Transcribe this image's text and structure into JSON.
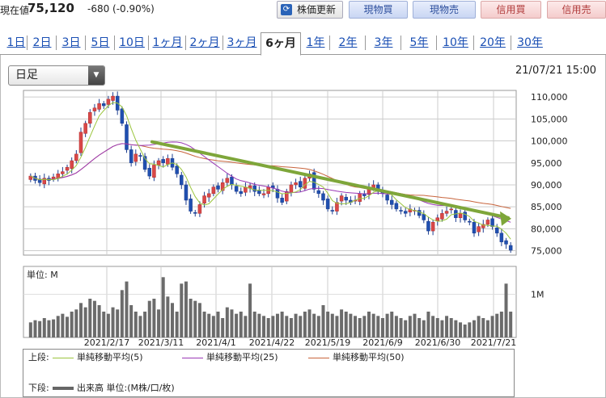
{
  "header": {
    "price_label": "現在値",
    "price": "75,120",
    "change": "-680 (-0.90%)",
    "refresh_label": "株価更新",
    "refresh_icon": "refresh-icon",
    "buy_label": "現物買",
    "sell_label": "現物売",
    "margin_buy_label": "信用買",
    "margin_sell_label": "信用売"
  },
  "tabs": [
    {
      "label": "1日"
    },
    {
      "label": "2日"
    },
    {
      "label": "3日"
    },
    {
      "label": "5日"
    },
    {
      "label": "10日"
    },
    {
      "label": "1ヶ月"
    },
    {
      "label": "2ヶ月"
    },
    {
      "label": "3ヶ月"
    },
    {
      "label": "6ヶ月",
      "active": true
    },
    {
      "label": "1年"
    },
    {
      "label": "2年"
    },
    {
      "label": "3年"
    },
    {
      "label": "5年"
    },
    {
      "label": "10年"
    },
    {
      "label": "20年"
    },
    {
      "label": "30年"
    }
  ],
  "controls": {
    "period_select": "日足",
    "timestamp": "21/07/21 15:00"
  },
  "chart_data": {
    "type": "candlestick",
    "price_axis": {
      "ticks": [
        "110,000",
        "105,000",
        "100,000",
        "95,000",
        "90,000",
        "85,000",
        "80,000",
        "75,000"
      ],
      "ylim": [
        74000,
        111500
      ]
    },
    "volume_axis": {
      "label": "単位: M",
      "ticks": [
        "1M"
      ]
    },
    "x_ticks": [
      "2021/2/17",
      "2021/3/11",
      "2021/4/1",
      "2021/4/22",
      "2021/5/19",
      "2021/6/9",
      "2021/6/30",
      "2021/7/21"
    ],
    "close": [
      92000,
      91000,
      90500,
      91500,
      91000,
      91800,
      92500,
      93000,
      94000,
      95500,
      97000,
      102000,
      104000,
      106500,
      107500,
      108500,
      108000,
      109500,
      110200,
      107000,
      104000,
      98000,
      95000,
      97000,
      96500,
      93500,
      92000,
      94500,
      95500,
      95000,
      96000,
      94000,
      92500,
      90000,
      86500,
      84000,
      83500,
      85500,
      87500,
      88000,
      89500,
      89000,
      90500,
      91500,
      90000,
      88500,
      88000,
      89500,
      89800,
      88500,
      88000,
      88000,
      89500,
      89300,
      87000,
      86000,
      88500,
      90000,
      90500,
      89500,
      91500,
      92500,
      89000,
      88000,
      86500,
      84500,
      84000,
      86000,
      87500,
      86500,
      86000,
      86500,
      88000,
      87500,
      89500,
      90000,
      88500,
      88000,
      86500,
      85500,
      84500,
      84000,
      83500,
      84500,
      84200,
      83000,
      82000,
      79500,
      81500,
      82500,
      83500,
      84000,
      84500,
      82500,
      83500,
      82000,
      81500,
      79000,
      80500,
      81000,
      82000,
      80500,
      79000,
      77000,
      76500,
      75120
    ],
    "sma_5_label": "単純移動平均(5)",
    "sma_25_label": "単純移動平均(25)",
    "sma_50_label": "単純移動平均(50)",
    "sma_5_color": "#9bc53d",
    "sma_25_color": "#9a38b5",
    "sma_50_color": "#c8643c",
    "trendline": {
      "from": [
        1,
        99800
      ],
      "to": [
        1,
        82500
      ],
      "color": "#7ea63a"
    },
    "volume": [
      0.35,
      0.4,
      0.38,
      0.45,
      0.4,
      0.42,
      0.5,
      0.55,
      0.48,
      0.6,
      0.65,
      0.8,
      0.7,
      0.9,
      0.85,
      0.75,
      0.6,
      0.55,
      0.7,
      0.65,
      1.1,
      1.3,
      0.75,
      0.6,
      0.5,
      0.6,
      0.85,
      0.9,
      0.65,
      1.4,
      0.95,
      0.8,
      0.6,
      1.25,
      1.3,
      0.9,
      0.85,
      0.8,
      0.6,
      0.55,
      0.5,
      0.6,
      0.45,
      0.7,
      0.65,
      0.55,
      0.6,
      0.5,
      1.25,
      0.6,
      0.55,
      0.5,
      0.45,
      0.5,
      0.55,
      0.6,
      0.5,
      0.45,
      0.55,
      0.5,
      0.6,
      0.65,
      0.55,
      0.5,
      0.75,
      0.6,
      0.55,
      0.5,
      0.65,
      0.6,
      0.55,
      0.5,
      0.45,
      0.5,
      0.6,
      0.55,
      0.5,
      0.45,
      0.55,
      0.6,
      0.5,
      0.45,
      0.4,
      0.5,
      0.55,
      0.45,
      0.4,
      0.6,
      0.5,
      0.45,
      0.4,
      0.5,
      0.45,
      0.4,
      0.35,
      0.3,
      0.35,
      0.4,
      0.5,
      0.45,
      0.4,
      0.5,
      0.55,
      0.6,
      1.25,
      0.6
    ]
  },
  "legend": {
    "upper_label": "上段:",
    "lower_label": "下段:",
    "volume_label": "出来高 単位:(M株/口/枚)"
  }
}
